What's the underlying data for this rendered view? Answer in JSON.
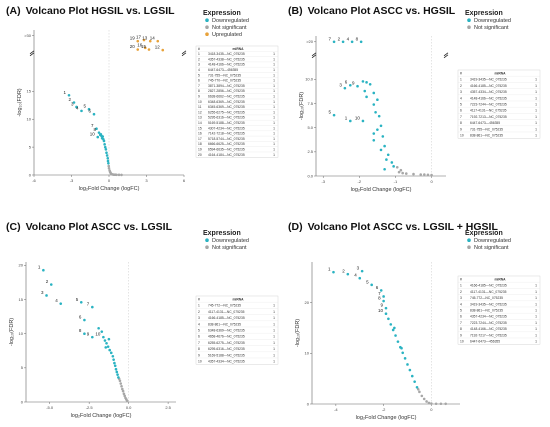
{
  "colors": {
    "downregulated": "#2ab3c2",
    "not_significant": "#a7a7a7",
    "upregulated": "#e8a23a",
    "axis": "#666666",
    "grid_dash": "#bbbbbb"
  },
  "chart_data": [
    {
      "type": "scatter",
      "panel_label": "(A)",
      "title": "Volcano Plot HGSIL vs. LGSIL",
      "xlabel": "log₂Fold Change (logFC)",
      "ylabel": "-log₁₀(FDR)",
      "x_ticks": [
        "-6",
        "-3",
        "0",
        "3",
        "6"
      ],
      "y_ticks": [
        "0",
        "5",
        "10",
        "15",
        ">30"
      ],
      "legend_title": "Expression",
      "legend": [
        "Downregulated",
        "Not significant",
        "Upregulated"
      ],
      "table_header": [
        "#",
        "miRNA"
      ],
      "table_rows": [
        [
          "1",
          "3418-3435—NC_075235",
          "1"
        ],
        [
          "2",
          "4357-4338—NC_075235",
          "1"
        ],
        [
          "3",
          "4148-4166—NC_075235",
          "1"
        ],
        [
          "4",
          "6447-6473—456355",
          "1"
        ],
        [
          "5",
          "731-755—NC_075235",
          "1"
        ],
        [
          "6",
          "745-770—NC_075235",
          "1"
        ],
        [
          "7",
          "3871-3894—NC_075235",
          "1"
        ],
        [
          "8",
          "2827-2856—NC_075235",
          "1"
        ],
        [
          "9",
          "6638-6662—NC_075235",
          "1"
        ],
        [
          "10",
          "6348-6369—NC_075235",
          "1"
        ],
        [
          "11",
          "6345-6369—NC_075235",
          "1"
        ],
        [
          "12",
          "6255-6275—NC_075235",
          "1"
        ],
        [
          "13",
          "5295-6316—NC_075235",
          "1"
        ],
        [
          "14",
          "5169-5188—NC_075235",
          "1"
        ],
        [
          "15",
          "4307-4234—NC_075235",
          "1"
        ],
        [
          "16",
          "7142-7218—NC_075235",
          "1"
        ],
        [
          "17",
          "5718-5744—NC_075235",
          "1"
        ],
        [
          "18",
          "6666-6625—NC_075235",
          "1"
        ],
        [
          "19",
          "6594-6635—NC_075235",
          "1"
        ],
        [
          "20",
          "4164-4184—NC_075235",
          "1"
        ]
      ],
      "point_labels": [
        {
          "label": "1",
          "x": -3.2,
          "y": 14.3
        },
        {
          "label": "2",
          "x": -2.8,
          "y": 13.0
        },
        {
          "label": "3",
          "x": -2.6,
          "y": 12.2
        },
        {
          "label": "4",
          "x": -2.2,
          "y": 11.5
        },
        {
          "label": "5",
          "x": -1.6,
          "y": 11.8
        },
        {
          "label": "6",
          "x": -1.2,
          "y": 10.9
        },
        {
          "label": "7",
          "x": -1.0,
          "y": 8.3
        },
        {
          "label": "8",
          "x": -0.8,
          "y": 7.6
        },
        {
          "label": "10",
          "x": -0.9,
          "y": 6.8
        },
        {
          "label": "19",
          "x": 2.3,
          "y": 24.0
        },
        {
          "label": "17",
          "x": 2.8,
          "y": 24.2
        },
        {
          "label": "13",
          "x": 3.3,
          "y": 24.0
        },
        {
          "label": "14",
          "x": 3.9,
          "y": 24.0
        },
        {
          "label": "20",
          "x": 2.3,
          "y": 22.5
        },
        {
          "label": "16",
          "x": 2.9,
          "y": 22.8
        },
        {
          "label": "15",
          "x": 3.2,
          "y": 22.5
        },
        {
          "label": "12",
          "x": 4.3,
          "y": 22.4
        }
      ],
      "downregulated": [
        [
          -3.2,
          14.3
        ],
        [
          -2.8,
          13.0
        ],
        [
          -2.6,
          12.2
        ],
        [
          -2.2,
          11.5
        ],
        [
          -1.6,
          11.8
        ],
        [
          -1.2,
          10.9
        ],
        [
          -1.0,
          8.3
        ],
        [
          -0.8,
          7.6
        ],
        [
          -0.9,
          6.8
        ],
        [
          -0.7,
          7.2
        ],
        [
          -0.6,
          7.0
        ],
        [
          -0.5,
          6.9
        ],
        [
          -0.45,
          6.4
        ],
        [
          -0.4,
          6.1
        ],
        [
          -0.35,
          5.5
        ],
        [
          -0.3,
          5.0
        ],
        [
          -0.25,
          4.6
        ],
        [
          -0.2,
          4.0
        ],
        [
          -0.15,
          3.5
        ],
        [
          -0.1,
          3.0
        ],
        [
          -0.08,
          2.5
        ],
        [
          -0.05,
          2.1
        ],
        [
          -0.55,
          6.6
        ],
        [
          -0.65,
          7.3
        ]
      ],
      "not_significant": [
        [
          0.0,
          1.2
        ],
        [
          0.05,
          0.8
        ],
        [
          0.1,
          0.5
        ],
        [
          0.15,
          0.3
        ],
        [
          0.2,
          0.15
        ],
        [
          -0.02,
          1.6
        ],
        [
          0.3,
          0.1
        ],
        [
          0.4,
          0.05
        ],
        [
          0.5,
          0.05
        ],
        [
          0.6,
          0.04
        ],
        [
          0.8,
          0.03
        ],
        [
          1.0,
          0.02
        ]
      ],
      "upregulated": [
        [
          2.3,
          24.0
        ],
        [
          2.8,
          24.2
        ],
        [
          3.3,
          24.0
        ],
        [
          3.9,
          24.0
        ],
        [
          2.3,
          22.5
        ],
        [
          2.9,
          22.8
        ],
        [
          3.2,
          22.5
        ],
        [
          4.3,
          22.4
        ]
      ]
    },
    {
      "type": "scatter",
      "panel_label": "(B)",
      "title": "Volcano Plot ASCC vs. HGSIL",
      "xlabel": "log₂Fold Change (logFC)",
      "ylabel": "-log₁₀(FDR)",
      "x_ticks": [
        "-3",
        "-2",
        "-1",
        "0"
      ],
      "y_ticks": [
        "0.0",
        "2.5",
        "5.0",
        "7.5",
        "10.0",
        ">20"
      ],
      "legend_title": "Expression",
      "legend": [
        "Downregulated",
        "Not significant"
      ],
      "table_header": [
        "#",
        "miRNA"
      ],
      "table_rows": [
        [
          "1",
          "3419-3435—NC_075235",
          "1"
        ],
        [
          "2",
          "4166-4185—NC_075235",
          "1"
        ],
        [
          "3",
          "4357-4334—NC_075235",
          "1"
        ],
        [
          "4",
          "4148-4166—NC_075235",
          "1"
        ],
        [
          "5",
          "7223-7244—NC_075235",
          "1"
        ],
        [
          "6",
          "4117-4131—NC_075235",
          "1"
        ],
        [
          "7",
          "7192-7213—NC_075235",
          "1"
        ],
        [
          "8",
          "6447-6473—456355",
          "1"
        ],
        [
          "9",
          "731-755—NC_075235",
          "1"
        ],
        [
          "10",
          "838-861—NC_075235",
          "1"
        ]
      ],
      "point_labels": [
        {
          "label": "7",
          "x": -2.7,
          "y": 13.9
        },
        {
          "label": "2",
          "x": -2.45,
          "y": 13.9
        },
        {
          "label": "4",
          "x": -2.2,
          "y": 13.9
        },
        {
          "label": "8",
          "x": -1.95,
          "y": 13.9
        },
        {
          "label": "6",
          "x": -2.25,
          "y": 9.4
        },
        {
          "label": "9",
          "x": -2.05,
          "y": 9.3
        },
        {
          "label": "3",
          "x": -2.4,
          "y": 9.1
        },
        {
          "label": "5",
          "x": -2.7,
          "y": 6.3
        },
        {
          "label": "1",
          "x": -2.25,
          "y": 5.7
        },
        {
          "label": "10",
          "x": -1.9,
          "y": 5.7
        }
      ],
      "downregulated": [
        [
          -2.7,
          13.9
        ],
        [
          -2.45,
          13.9
        ],
        [
          -2.2,
          13.9
        ],
        [
          -1.95,
          13.9
        ],
        [
          -2.25,
          9.4
        ],
        [
          -2.05,
          9.3
        ],
        [
          -2.4,
          9.1
        ],
        [
          -1.9,
          9.8
        ],
        [
          -1.8,
          9.7
        ],
        [
          -1.7,
          9.5
        ],
        [
          -1.85,
          8.8
        ],
        [
          -1.6,
          8.6
        ],
        [
          -1.8,
          8.2
        ],
        [
          -1.5,
          7.9
        ],
        [
          -1.6,
          7.4
        ],
        [
          -2.7,
          6.3
        ],
        [
          -2.25,
          5.7
        ],
        [
          -1.9,
          5.7
        ],
        [
          -1.55,
          6.6
        ],
        [
          -1.45,
          6.2
        ],
        [
          -1.4,
          5.2
        ],
        [
          -1.5,
          4.8
        ],
        [
          -1.6,
          4.4
        ],
        [
          -1.35,
          4.1
        ],
        [
          -1.6,
          3.7
        ],
        [
          -1.3,
          3.1
        ],
        [
          -1.4,
          2.7
        ],
        [
          -1.2,
          2.2
        ],
        [
          -1.25,
          1.7
        ],
        [
          -1.1,
          1.4
        ],
        [
          -1.05,
          1.0
        ],
        [
          -1.3,
          0.7
        ]
      ],
      "not_significant": [
        [
          -0.9,
          0.4
        ],
        [
          -0.8,
          0.3
        ],
        [
          -0.7,
          0.25
        ],
        [
          -0.5,
          0.2
        ],
        [
          -0.3,
          0.15
        ],
        [
          -0.2,
          0.15
        ],
        [
          -0.1,
          0.12
        ],
        [
          0.0,
          0.1
        ],
        [
          -0.95,
          0.9
        ],
        [
          -0.85,
          0.6
        ]
      ]
    },
    {
      "type": "scatter",
      "panel_label": "(C)",
      "title": "Volcano Plot ASCC vs. LGSIL",
      "xlabel": "log₂Fold Change (logFC)",
      "ylabel": "-log₁₀(FDR)",
      "x_ticks": [
        "-5.0",
        "-2.5",
        "0.0",
        "2.5"
      ],
      "y_ticks": [
        "0",
        "5",
        "10",
        "15",
        "20"
      ],
      "legend_title": "Expression",
      "legend": [
        "Downregulated",
        "Not significant"
      ],
      "table_header": [
        "#",
        "miRNA"
      ],
      "table_rows": [
        [
          "1",
          "745-772—NC_075235",
          "1"
        ],
        [
          "2",
          "4117-4131—NC_075235",
          "1"
        ],
        [
          "3",
          "4166-4185—NC_075235",
          "1"
        ],
        [
          "4",
          "838-861—NC_075235",
          "1"
        ],
        [
          "5",
          "6348-6369—NC_075235",
          "1"
        ],
        [
          "6",
          "4658-4676—NC_075235",
          "1"
        ],
        [
          "7",
          "6255-6275—NC_075235",
          "1"
        ],
        [
          "8",
          "6295-6316—NC_075235",
          "1"
        ],
        [
          "9",
          "5169-5188—NC_075235",
          "1"
        ],
        [
          "10",
          "4357-4334—NC_075235",
          "1"
        ]
      ],
      "point_labels": [
        {
          "label": "1",
          "x": -5.4,
          "y": 19.3
        },
        {
          "label": "2",
          "x": -4.9,
          "y": 17.2
        },
        {
          "label": "3",
          "x": -5.2,
          "y": 15.6
        },
        {
          "label": "4",
          "x": -4.3,
          "y": 14.4
        },
        {
          "label": "5",
          "x": -3.0,
          "y": 14.6
        },
        {
          "label": "7",
          "x": -2.3,
          "y": 13.9
        },
        {
          "label": "6",
          "x": -2.8,
          "y": 12.0
        },
        {
          "label": "8",
          "x": -2.8,
          "y": 10.0
        },
        {
          "label": "9",
          "x": -2.3,
          "y": 9.5
        },
        {
          "label": "10",
          "x": -1.6,
          "y": 9.5
        }
      ],
      "downregulated": [
        [
          -5.4,
          19.3
        ],
        [
          -4.9,
          17.2
        ],
        [
          -5.2,
          15.6
        ],
        [
          -4.3,
          14.4
        ],
        [
          -3.0,
          14.6
        ],
        [
          -2.3,
          13.9
        ],
        [
          -2.8,
          12.0
        ],
        [
          -2.8,
          10.0
        ],
        [
          -2.3,
          9.5
        ],
        [
          -1.6,
          9.5
        ],
        [
          -1.9,
          10.8
        ],
        [
          -1.7,
          10.3
        ],
        [
          -1.5,
          9.0
        ],
        [
          -1.4,
          8.6
        ],
        [
          -1.3,
          8.1
        ],
        [
          -1.2,
          7.6
        ],
        [
          -1.1,
          7.2
        ],
        [
          -1.0,
          6.7
        ],
        [
          -0.95,
          6.2
        ],
        [
          -0.9,
          5.7
        ],
        [
          -0.85,
          5.3
        ],
        [
          -0.8,
          4.8
        ],
        [
          -0.75,
          4.4
        ],
        [
          -0.7,
          4.0
        ],
        [
          -0.65,
          3.6
        ],
        [
          -1.25,
          9.2
        ],
        [
          -1.45,
          8.0
        ]
      ],
      "not_significant": [
        [
          -0.55,
          3.1
        ],
        [
          -0.5,
          2.7
        ],
        [
          -0.45,
          2.3
        ],
        [
          -0.4,
          1.9
        ],
        [
          -0.35,
          1.6
        ],
        [
          -0.3,
          1.2
        ],
        [
          -0.25,
          0.9
        ],
        [
          -0.2,
          0.6
        ],
        [
          -0.15,
          0.4
        ],
        [
          -0.1,
          0.2
        ],
        [
          -0.6,
          3.4
        ]
      ]
    },
    {
      "type": "scatter",
      "panel_label": "(D)",
      "title": "Volcano Plot ASCC vs. LGSIL + HGSIL",
      "xlabel": "log₂Fold Change (logFC)",
      "ylabel": "-log₁₀(FDR)",
      "x_ticks": [
        "-4",
        "-2",
        "0"
      ],
      "y_ticks": [
        "0",
        "10",
        "20"
      ],
      "legend_title": "Expression",
      "legend": [
        "Downregulated",
        "Not significant"
      ],
      "table_header": [
        "#",
        "miRNA"
      ],
      "table_rows": [
        [
          "1",
          "4166-4185—NC_075235",
          "1"
        ],
        [
          "2",
          "4117-4131—NC_075235",
          "1"
        ],
        [
          "3",
          "745-772—NC_075235",
          "1"
        ],
        [
          "4",
          "3419-3435—NC_075235",
          "1"
        ],
        [
          "5",
          "838-861—NC_075235",
          "1"
        ],
        [
          "6",
          "4357-4234—NC_075235",
          "1"
        ],
        [
          "7",
          "7223-7244—NC_075235",
          "1"
        ],
        [
          "8",
          "4148-4166—NC_075235",
          "1"
        ],
        [
          "9",
          "7192-7217—NC_075235",
          "1"
        ],
        [
          "10",
          "6447-6473—456355",
          "1"
        ]
      ],
      "point_labels": [
        {
          "label": "1",
          "x": -4.1,
          "y": 26.0
        },
        {
          "label": "2",
          "x": -3.5,
          "y": 25.6
        },
        {
          "label": "3",
          "x": -2.9,
          "y": 26.2
        },
        {
          "label": "4",
          "x": -3.0,
          "y": 24.8
        },
        {
          "label": "5",
          "x": -2.5,
          "y": 23.5
        },
        {
          "label": "6",
          "x": -2.1,
          "y": 22.4
        },
        {
          "label": "7",
          "x": -2.0,
          "y": 21.2
        },
        {
          "label": "8",
          "x": -2.0,
          "y": 20.3
        },
        {
          "label": "9",
          "x": -1.9,
          "y": 18.9
        },
        {
          "label": "10",
          "x": -1.9,
          "y": 17.8
        }
      ],
      "downregulated": [
        [
          -4.1,
          26.0
        ],
        [
          -3.5,
          25.6
        ],
        [
          -2.9,
          26.2
        ],
        [
          -3.0,
          24.8
        ],
        [
          -2.5,
          23.5
        ],
        [
          -2.1,
          22.4
        ],
        [
          -2.0,
          21.2
        ],
        [
          -2.0,
          20.3
        ],
        [
          -1.9,
          18.9
        ],
        [
          -1.9,
          17.8
        ],
        [
          -1.8,
          16.8
        ],
        [
          -1.7,
          15.7
        ],
        [
          -1.6,
          14.6
        ],
        [
          -1.5,
          13.5
        ],
        [
          -1.4,
          12.3
        ],
        [
          -1.3,
          11.2
        ],
        [
          -1.2,
          10.1
        ],
        [
          -1.1,
          9.0
        ],
        [
          -1.0,
          7.8
        ],
        [
          -0.9,
          6.7
        ],
        [
          -0.8,
          5.5
        ],
        [
          -0.7,
          4.4
        ],
        [
          -0.6,
          3.3
        ],
        [
          -1.55,
          15.0
        ],
        [
          -1.25,
          11.0
        ]
      ],
      "not_significant": [
        [
          -0.5,
          2.4
        ],
        [
          -0.4,
          1.6
        ],
        [
          -0.3,
          1.0
        ],
        [
          -0.2,
          0.5
        ],
        [
          -0.1,
          0.2
        ],
        [
          0.0,
          0.1
        ],
        [
          0.2,
          0.05
        ],
        [
          0.4,
          0.05
        ],
        [
          0.6,
          0.04
        ],
        [
          -0.55,
          2.9
        ]
      ]
    }
  ]
}
